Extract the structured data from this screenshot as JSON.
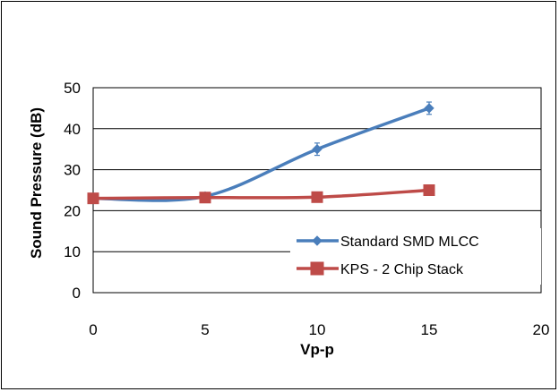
{
  "chart_data": {
    "type": "line",
    "title": "",
    "xlabel": "Vp-p",
    "ylabel": "Sound Pressure (dB)",
    "xlim": [
      0,
      20
    ],
    "ylim": [
      0,
      50
    ],
    "xticks": [
      0,
      5,
      10,
      15,
      20
    ],
    "yticks": [
      0,
      10,
      20,
      30,
      40,
      50
    ],
    "grid": "horizontal",
    "legend_position": "lower-right",
    "series": [
      {
        "name": "Standard SMD MLCC",
        "color": "#4a7ebb",
        "marker": "diamond",
        "smooth": true,
        "x": [
          0,
          5,
          10,
          15
        ],
        "y": [
          23,
          23.5,
          35,
          45
        ],
        "error": [
          0,
          0,
          1.5,
          1.5
        ]
      },
      {
        "name": "KPS - 2 Chip Stack",
        "color": "#be4b48",
        "marker": "square",
        "smooth": true,
        "x": [
          0,
          5,
          10,
          15
        ],
        "y": [
          23,
          23.2,
          23.3,
          25
        ],
        "error": [
          0,
          0,
          0,
          0
        ]
      }
    ]
  }
}
